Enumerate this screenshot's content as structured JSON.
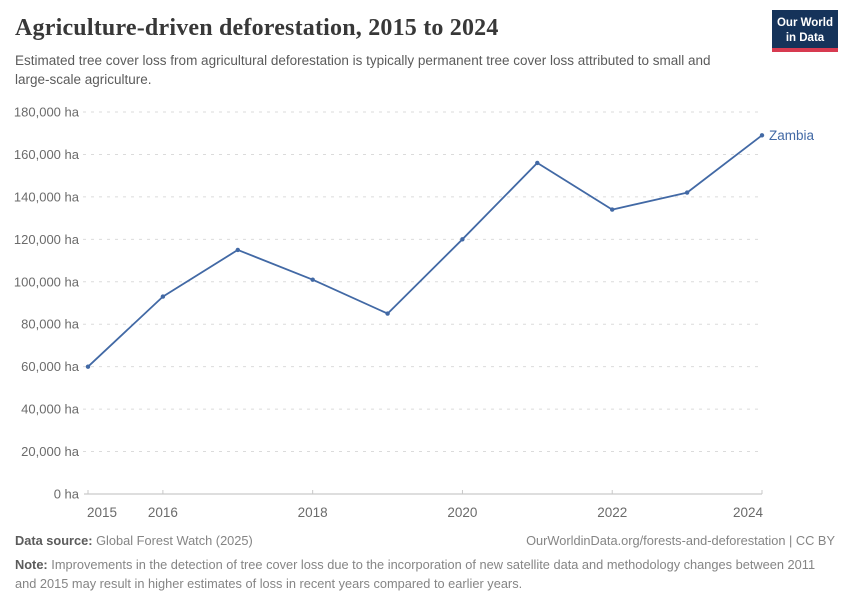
{
  "header": {
    "title": "Agriculture-driven deforestation, 2015 to 2024",
    "subtitle": "Estimated tree cover loss from agricultural deforestation is typically permanent tree cover loss attributed to small and large-scale agriculture.",
    "logo": {
      "line1": "Our World",
      "line2": "in Data"
    }
  },
  "chart_data": {
    "type": "line",
    "title": "Agriculture-driven deforestation, 2015 to 2024",
    "x": [
      2015,
      2016,
      2017,
      2018,
      2019,
      2020,
      2021,
      2022,
      2023,
      2024
    ],
    "series": [
      {
        "name": "Zambia",
        "color": "#4269a5",
        "values": [
          60000,
          93000,
          115000,
          101000,
          85000,
          120000,
          156000,
          134000,
          142000,
          169000
        ]
      }
    ],
    "unit": "ha",
    "ylim": [
      0,
      180000
    ],
    "yticks": [
      0,
      20000,
      40000,
      60000,
      80000,
      100000,
      120000,
      140000,
      160000,
      180000
    ],
    "ytick_labels": [
      "0 ha",
      "20,000 ha",
      "40,000 ha",
      "60,000 ha",
      "80,000 ha",
      "100,000 ha",
      "120,000 ha",
      "140,000 ha",
      "160,000 ha",
      "180,000 ha"
    ],
    "xticks": [
      2015,
      2016,
      2018,
      2020,
      2022,
      2024
    ],
    "grid": "horizontal-dashed",
    "legend_position": "end-of-line"
  },
  "footer": {
    "datasource_label": "Data source:",
    "datasource_value": "Global Forest Watch (2025)",
    "attribution": "OurWorldinData.org/forests-and-deforestation | CC BY",
    "note_label": "Note:",
    "note_value": "Improvements in the detection of tree cover loss due to the incorporation of new satellite data and methodology changes between 2011 and 2015 may result in higher estimates of loss in recent years compared to earlier years."
  },
  "colors": {
    "series_blue": "#4269a5",
    "logo_bg": "#15335a",
    "logo_stripe": "#d73a50",
    "grid": "#dbdbdb",
    "axis": "#bdbdbd",
    "tick": "#c8c8c8",
    "tick_label": "#6b6b6b",
    "title_text": "#383838",
    "subtitle_text": "#5b5b5b",
    "footer_text": "#858585"
  }
}
